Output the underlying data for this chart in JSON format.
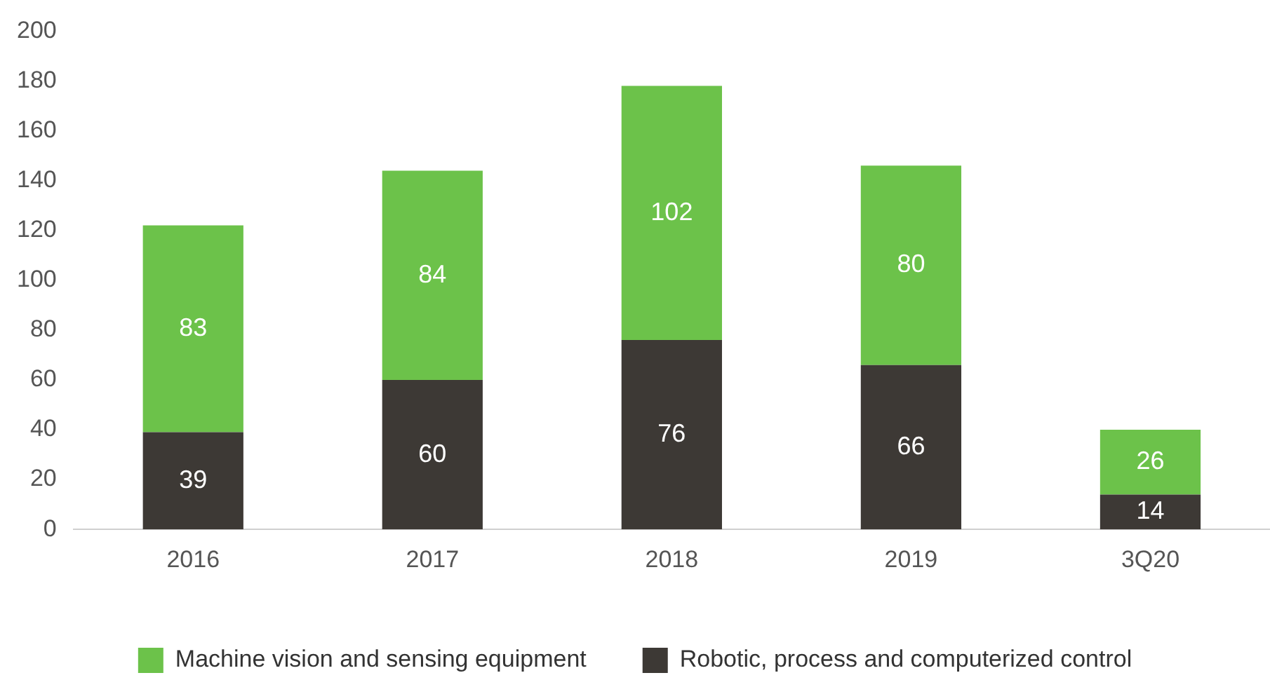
{
  "chart_data": {
    "type": "bar",
    "stacked": true,
    "categories": [
      "2016",
      "2017",
      "2018",
      "2019",
      "3Q20"
    ],
    "series": [
      {
        "name": "Robotic, process and computerized control",
        "color": "#3d3935",
        "values": [
          39,
          60,
          76,
          66,
          14
        ]
      },
      {
        "name": "Machine vision and sensing equipment",
        "color": "#6cc24a",
        "values": [
          83,
          84,
          102,
          80,
          26
        ]
      }
    ],
    "ylim": [
      0,
      200
    ],
    "yticks": [
      0,
      20,
      40,
      60,
      80,
      100,
      120,
      140,
      160,
      180,
      200
    ],
    "grid": false,
    "legend": "bottom",
    "data_labels": true
  }
}
